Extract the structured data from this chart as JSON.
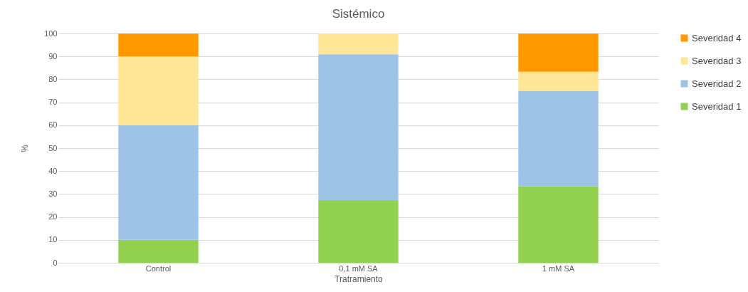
{
  "chart_data": {
    "type": "bar",
    "title": "Sistémico",
    "xlabel": "Tratramiento",
    "ylabel": "%",
    "categories": [
      "Control",
      "0,1 mM SA",
      "1 mM SA"
    ],
    "stacked": true,
    "series": [
      {
        "name": "Severidad 1",
        "color": "#92d050",
        "values": [
          10,
          27.3,
          33.3
        ]
      },
      {
        "name": "Severidad 2",
        "color": "#9dc3e6",
        "values": [
          50,
          63.6,
          41.7
        ]
      },
      {
        "name": "Severidad 3",
        "color": "#ffe699",
        "values": [
          30,
          9.1,
          8.3
        ]
      },
      {
        "name": "Severidad 4",
        "color": "#ff9900",
        "values": [
          10,
          0,
          16.7
        ]
      }
    ],
    "ylim": [
      0,
      100
    ],
    "yticks": [
      0,
      10,
      20,
      30,
      40,
      50,
      60,
      70,
      80,
      90,
      100
    ],
    "grid": "y",
    "legend": "right"
  }
}
